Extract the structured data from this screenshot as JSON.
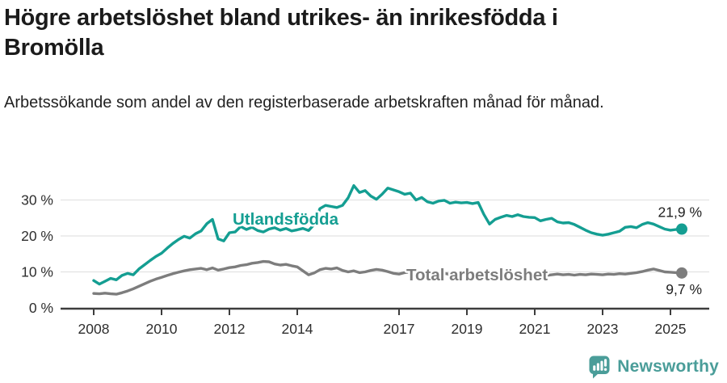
{
  "header": {
    "title": "Högre arbetslöshet bland utrikes- än inrikesfödda i Bromölla",
    "subtitle": "Arbetssökande som andel av den registerbaserade arbetskraften månad för månad."
  },
  "chart_data": {
    "type": "line",
    "title": "Högre arbetslöshet bland utrikes- än inrikesfödda i Bromölla",
    "subtitle": "Arbetssökande som andel av den registerbaserade arbetskraften månad för månad.",
    "x_axis": {
      "tick_labels": [
        "2008",
        "2010",
        "2012",
        "2014",
        "2017",
        "2019",
        "2021",
        "2023",
        "2025"
      ],
      "range_years": [
        2007.0,
        2026.1
      ]
    },
    "y_axis": {
      "tick_labels": [
        "0 %",
        "10 %",
        "20 %",
        "30 %"
      ],
      "tick_values": [
        0,
        10,
        20,
        30
      ],
      "ylim": [
        0,
        35
      ],
      "grid": true
    },
    "legend_position": "inline-labels-on-lines",
    "colors": {
      "accent_teal": "#149e92",
      "line_gray": "#7d7d7d",
      "grid": "#e2e2e2",
      "axis": "#3d3d3d",
      "text_dark": "#1f1f1f"
    },
    "series": [
      {
        "name": "Utlandsfödda",
        "color": "#149e92",
        "start_year": 2008.0,
        "step_years": 0.1666667,
        "end_label": "21,9 %",
        "end_value": 21.9,
        "values": [
          7.6,
          6.6,
          7.4,
          8.2,
          7.8,
          9.0,
          9.6,
          9.2,
          10.8,
          12.0,
          13.2,
          14.3,
          15.2,
          16.6,
          17.9,
          19.0,
          19.9,
          19.4,
          20.6,
          21.4,
          23.4,
          24.6,
          19.2,
          18.6,
          20.9,
          21.1,
          22.6,
          21.8,
          22.4,
          21.5,
          21.1,
          21.9,
          22.3,
          21.6,
          22.1,
          21.4,
          21.7,
          22.1,
          21.5,
          23.2,
          27.6,
          28.5,
          28.2,
          27.9,
          28.5,
          30.6,
          34.0,
          32.1,
          32.6,
          31.1,
          30.2,
          31.6,
          33.3,
          32.8,
          32.3,
          31.6,
          31.9,
          30.0,
          30.7,
          29.5,
          29.1,
          29.7,
          29.9,
          29.1,
          29.4,
          29.2,
          29.3,
          29.0,
          29.3,
          26.0,
          23.3,
          24.6,
          25.2,
          25.7,
          25.4,
          25.9,
          25.4,
          25.2,
          25.1,
          24.2,
          24.6,
          24.9,
          23.9,
          23.6,
          23.7,
          23.2,
          22.4,
          21.6,
          20.9,
          20.5,
          20.2,
          20.5,
          20.9,
          21.3,
          22.4,
          22.6,
          22.3,
          23.2,
          23.7,
          23.3,
          22.6,
          21.9,
          21.6,
          21.8,
          21.9
        ]
      },
      {
        "name": "Total arbetslöshet",
        "color": "#7d7d7d",
        "start_year": 2008.0,
        "step_years": 0.1666667,
        "end_label": "9,7 %",
        "end_value": 9.7,
        "values": [
          4.0,
          3.9,
          4.1,
          3.9,
          3.8,
          4.2,
          4.7,
          5.3,
          6.0,
          6.7,
          7.4,
          8.0,
          8.5,
          9.0,
          9.5,
          9.9,
          10.3,
          10.6,
          10.8,
          11.0,
          10.6,
          11.1,
          10.5,
          10.8,
          11.2,
          11.4,
          11.8,
          12.0,
          12.4,
          12.6,
          12.9,
          12.8,
          12.2,
          11.9,
          12.1,
          11.7,
          11.4,
          10.3,
          9.2,
          9.7,
          10.6,
          11.0,
          10.8,
          11.1,
          10.4,
          10.0,
          10.3,
          9.8,
          10.0,
          10.4,
          10.7,
          10.5,
          10.1,
          9.6,
          9.4,
          9.8,
          10.0,
          9.7,
          9.3,
          9.5,
          9.7,
          9.4,
          9.6,
          9.3,
          9.5,
          9.2,
          9.4,
          9.1,
          9.3,
          9.0,
          8.8,
          9.1,
          9.3,
          9.6,
          9.4,
          9.2,
          9.5,
          9.3,
          9.1,
          9.3,
          9.0,
          9.2,
          9.4,
          9.2,
          9.3,
          9.1,
          9.3,
          9.2,
          9.4,
          9.3,
          9.2,
          9.4,
          9.3,
          9.5,
          9.4,
          9.6,
          9.8,
          10.1,
          10.5,
          10.8,
          10.4,
          10.0,
          9.9,
          9.8,
          9.7
        ]
      }
    ]
  },
  "footer": {
    "brand": "Newsworthy",
    "brand_color": "#4a9d99",
    "logo_icon": "newsworthy-speech-bubble-bars-icon"
  }
}
